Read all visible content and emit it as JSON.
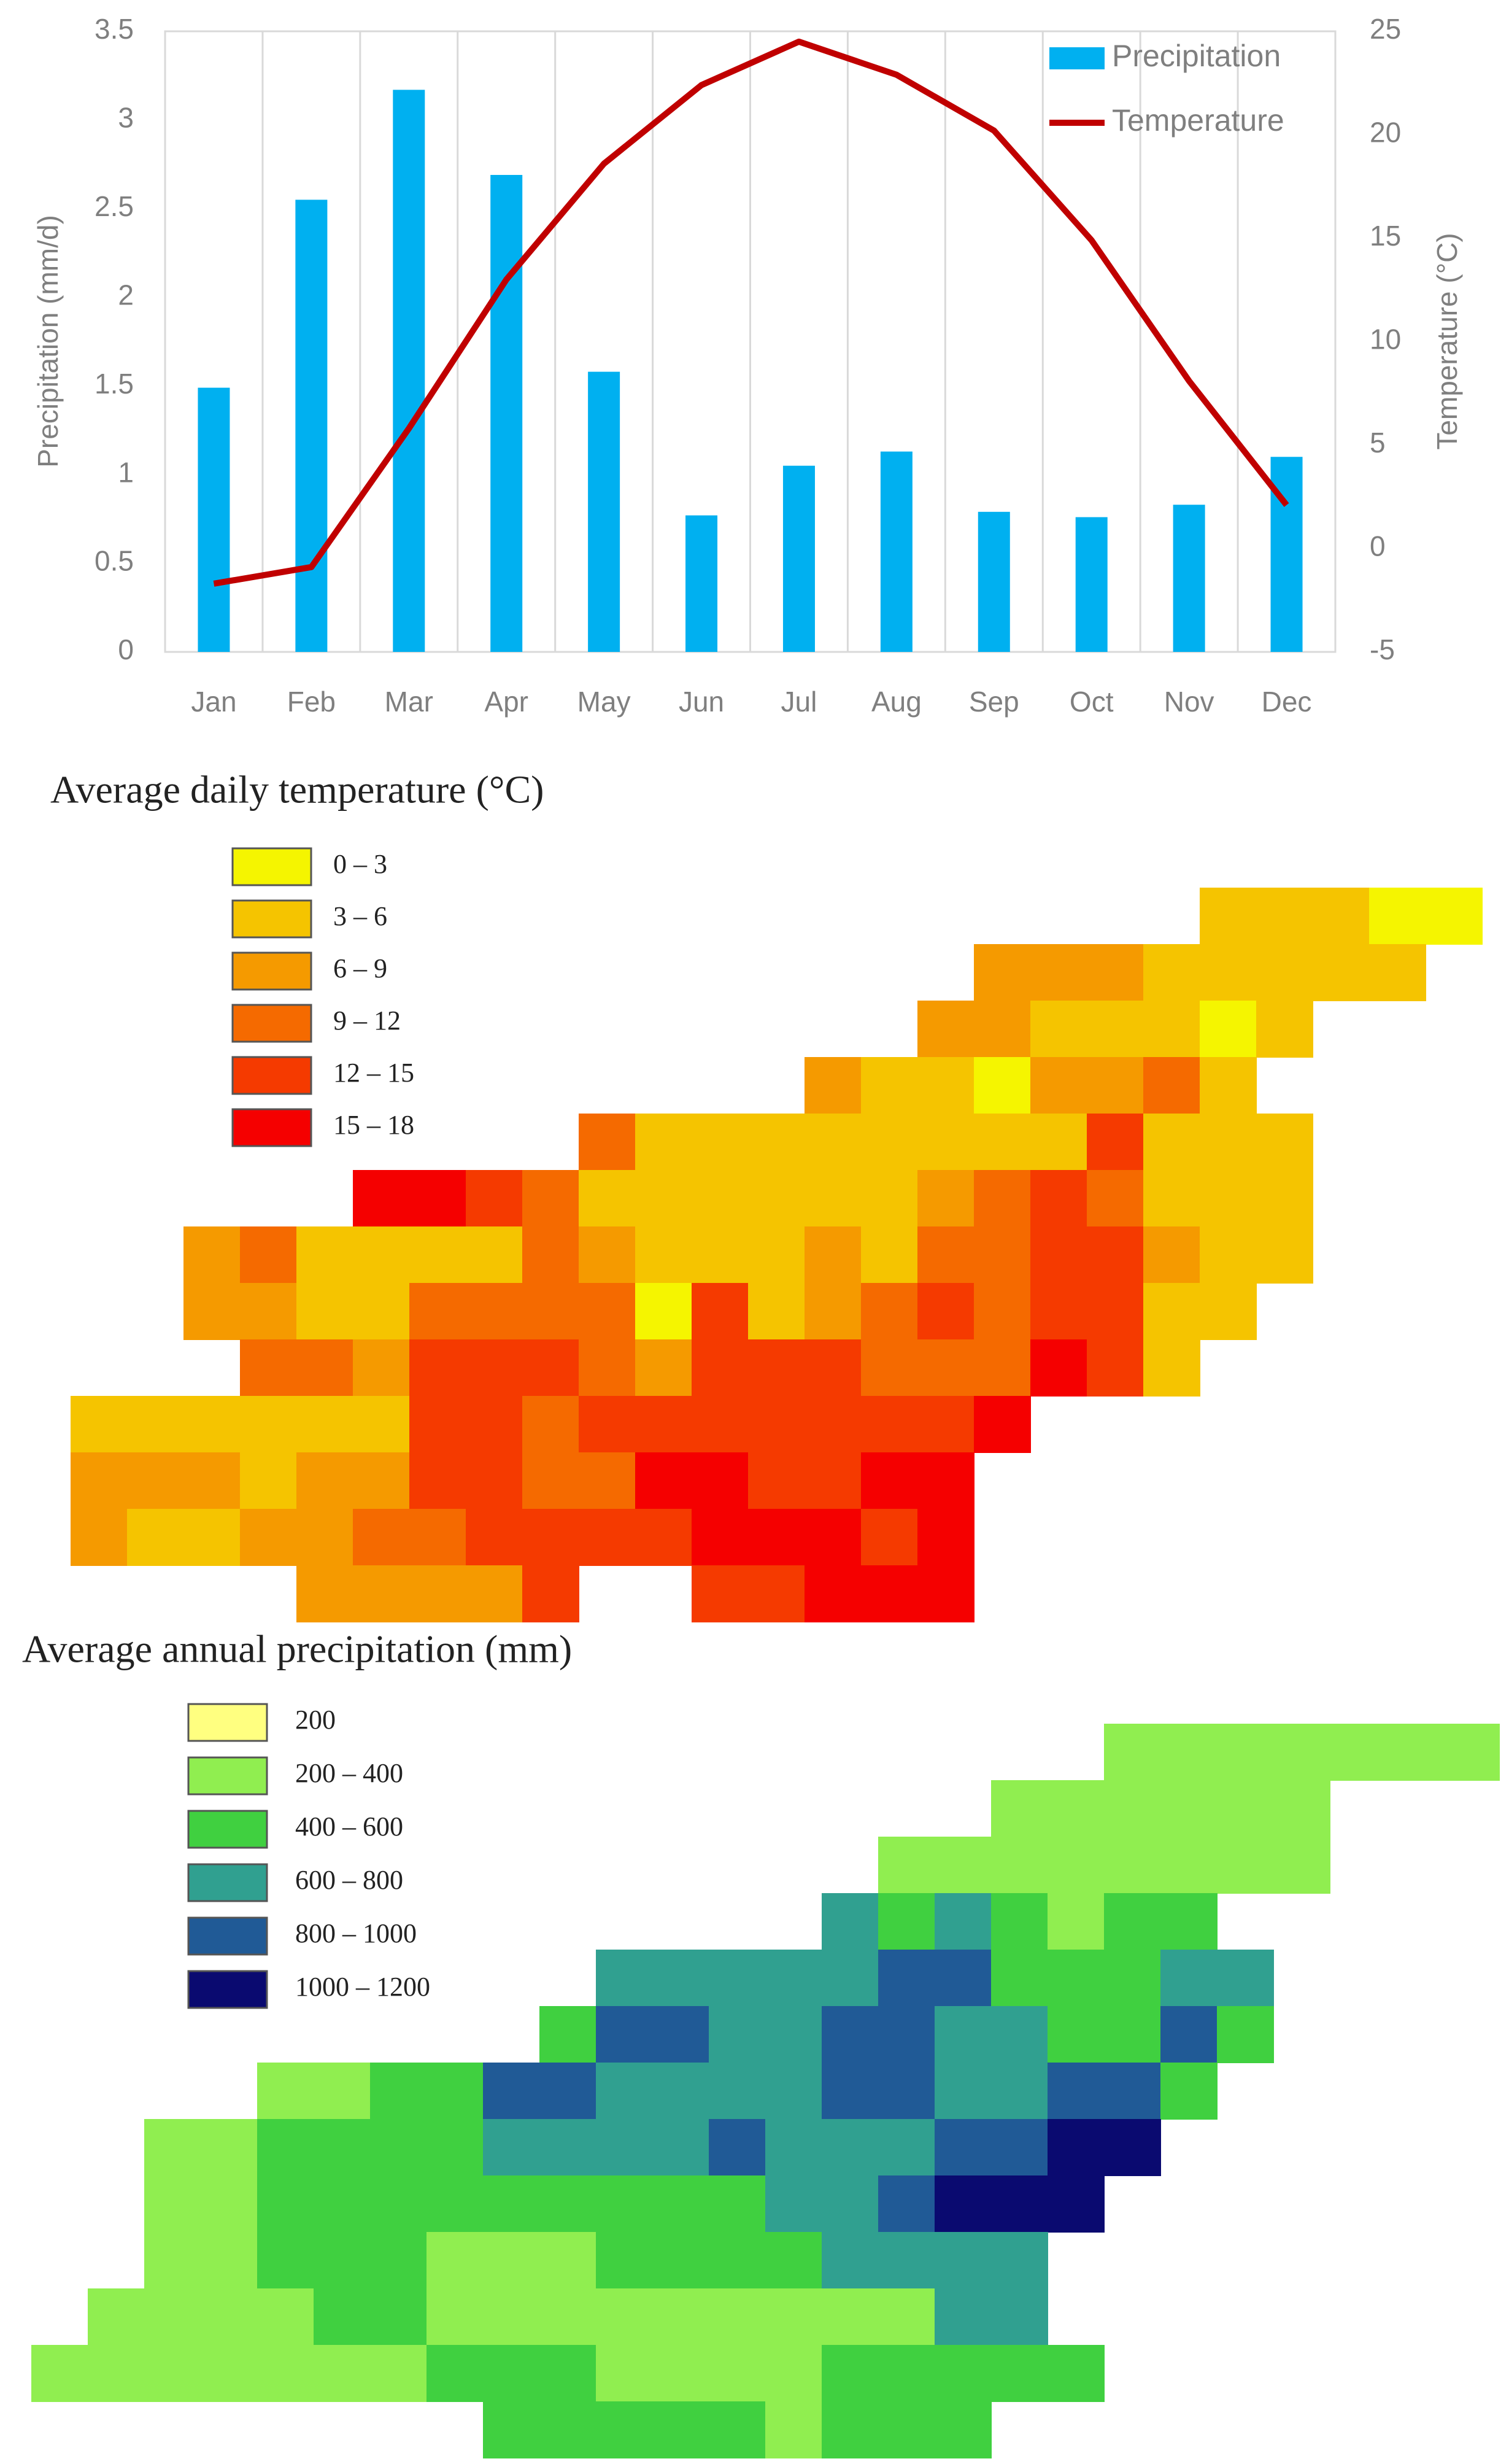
{
  "chart_data": {
    "type": "bar",
    "categories": [
      "Jan",
      "Feb",
      "Mar",
      "Apr",
      "May",
      "Jun",
      "Jul",
      "Aug",
      "Sep",
      "Oct",
      "Nov",
      "Dec"
    ],
    "series": [
      {
        "name": "Precipitation",
        "type": "bar",
        "color": "#00b0f0",
        "values": [
          1.49,
          2.55,
          3.17,
          2.69,
          1.58,
          0.77,
          1.05,
          1.13,
          0.79,
          0.76,
          0.83,
          1.1
        ]
      },
      {
        "name": "Temperature",
        "type": "line",
        "axis": "y2",
        "color": "#c00000",
        "values": [
          -1.7,
          -0.9,
          5.8,
          13,
          18.6,
          22.4,
          24.5,
          22.9,
          20.2,
          14.9,
          8.1,
          2.1
        ]
      }
    ],
    "ylabel": "Precipitation (mm/d)",
    "y2label": "Temperature (°C)",
    "ylim": [
      0,
      3.5
    ],
    "yticks": [
      0,
      0.5,
      1,
      1.5,
      2,
      2.5,
      3,
      3.5
    ],
    "y2lim": [
      -5,
      25
    ],
    "y2ticks": [
      -5,
      0,
      5,
      10,
      15,
      20,
      25
    ],
    "legend": "upper right",
    "grid": "vertical"
  },
  "maps": [
    {
      "title": "Average daily temperature (°C)",
      "legend": [
        {
          "label": "0 – 3",
          "color": "#f5f500"
        },
        {
          "label": "3 – 6",
          "color": "#f5c400"
        },
        {
          "label": "6 – 9",
          "color": "#f59a00"
        },
        {
          "label": "9 – 12",
          "color": "#f56a00"
        },
        {
          "label": "12 – 15",
          "color": "#f53a00"
        },
        {
          "label": "15 – 18",
          "color": "#f50000"
        }
      ]
    },
    {
      "title": "Average annual precipitation (mm)",
      "legend": [
        {
          "label": "200",
          "color": "#ffff80"
        },
        {
          "label": "200 – 400",
          "color": "#90ee50"
        },
        {
          "label": "400 – 600",
          "color": "#40d040"
        },
        {
          "label": "600 – 800",
          "color": "#30a090"
        },
        {
          "label": "800 – 1000",
          "color": "#205a96"
        },
        {
          "label": "1000 – 1200",
          "color": "#0a0a70"
        }
      ]
    }
  ]
}
